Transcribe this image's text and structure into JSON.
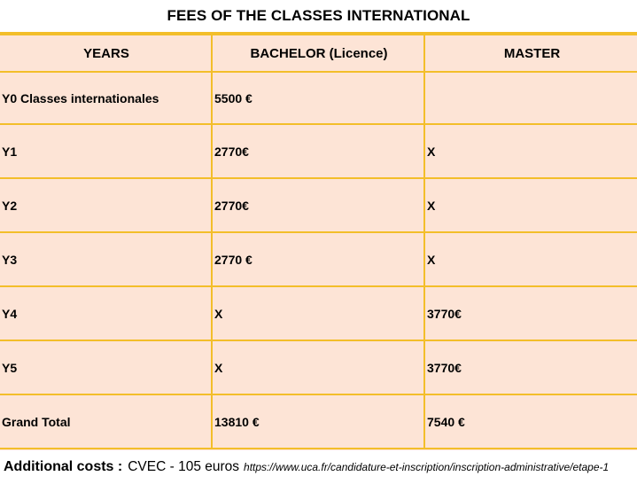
{
  "title": "FEES OF THE CLASSES INTERNATIONAL",
  "headers": [
    "YEARS",
    "BACHELOR (Licence)",
    "MASTER"
  ],
  "rows": [
    [
      "Y0 Classes internationales",
      "5500 €",
      ""
    ],
    [
      "Y1",
      "2770€",
      "X"
    ],
    [
      "Y2",
      "2770€",
      "X"
    ],
    [
      "Y3",
      "2770 €",
      "X"
    ],
    [
      "Y4",
      "X",
      "3770€"
    ],
    [
      "Y5",
      "X",
      "3770€"
    ],
    [
      "Grand Total",
      "13810 €",
      "7540 €"
    ]
  ],
  "footer": {
    "label": "Additional costs :",
    "cvec": "CVEC - 105 euros",
    "url": "https://www.uca.fr/candidature-et-inscription/inscription-administrative/etape-1"
  }
}
